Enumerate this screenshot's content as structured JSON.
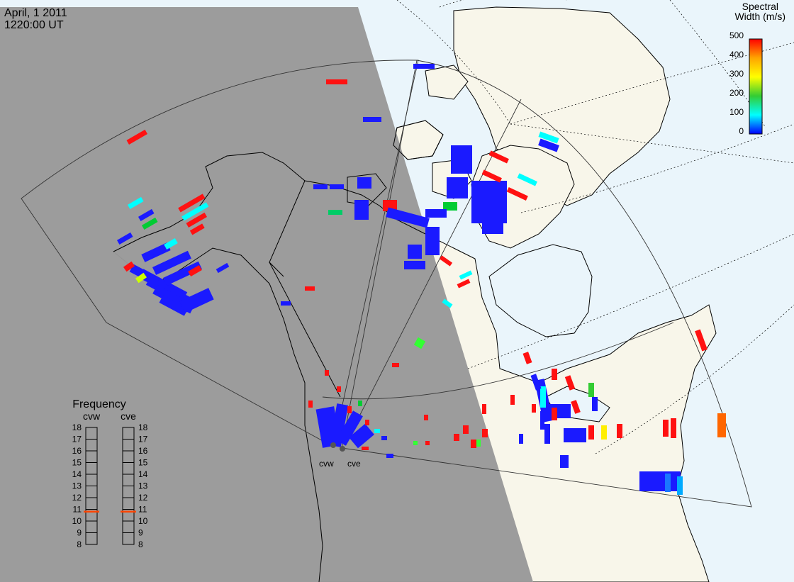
{
  "header": {
    "date": "April, 1 2011",
    "time": "1220:00 UT"
  },
  "colorbar": {
    "title_line1": "Spectral",
    "title_line2": "Width (m/s)",
    "ticks": [
      "500",
      "400",
      "300",
      "200",
      "100",
      "0"
    ],
    "stops": [
      "#ff0000",
      "#ffa500",
      "#ffff00",
      "#33cc33",
      "#00ffff",
      "#0000ff"
    ]
  },
  "frequency": {
    "title": "Frequency",
    "panels": [
      {
        "label": "cvw",
        "value": 10.8
      },
      {
        "label": "cve",
        "value": 10.8
      }
    ],
    "ticks": [
      "18",
      "17",
      "16",
      "15",
      "14",
      "13",
      "12",
      "11",
      "10",
      "9",
      "8"
    ],
    "marker_color": "#ff4400"
  },
  "radars": [
    {
      "label": "cvw"
    },
    {
      "label": "cve"
    }
  ],
  "colors": {
    "night": "#999999",
    "ocean_day": "#eaf5fb",
    "land_day": "#f8f6ea",
    "low_width": "#1a1aff",
    "high_width": "#ff1111"
  }
}
